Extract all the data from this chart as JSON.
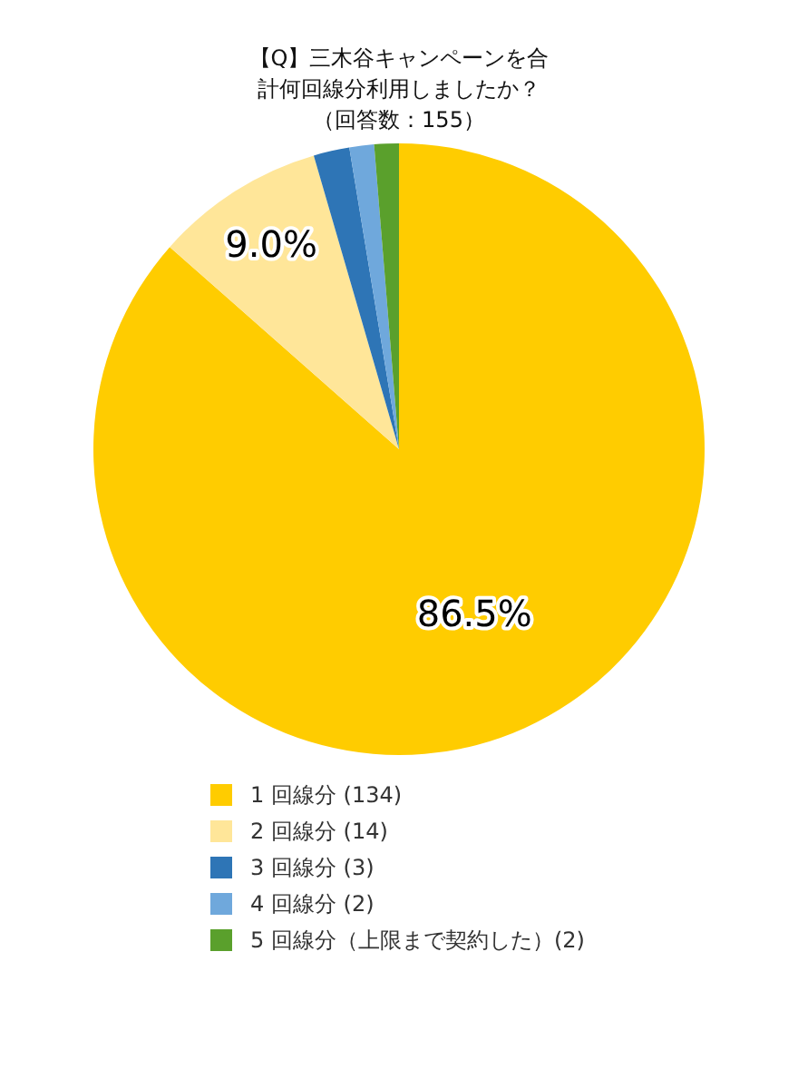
{
  "chart_data": {
    "type": "pie",
    "title": "【Q】三木谷キャンペーンを合計何回線分利用しましたか？",
    "subtitle": "（回答数：155）",
    "categories": [
      "1 回線分 (134)",
      "2 回線分 (14)",
      "3 回線分 (3)",
      "4 回線分 (2)",
      "5 回線分（上限まで契約した）(2)"
    ],
    "values": [
      86.5,
      9.0,
      1.9,
      1.3,
      1.3
    ],
    "colors": [
      "#ffcc00",
      "#ffe699",
      "#2e75b6",
      "#6fa8dc",
      "#5aa02c"
    ],
    "value_labels": [
      "86.5%",
      "9.0%",
      null,
      null,
      null
    ],
    "legend": "bottom"
  }
}
